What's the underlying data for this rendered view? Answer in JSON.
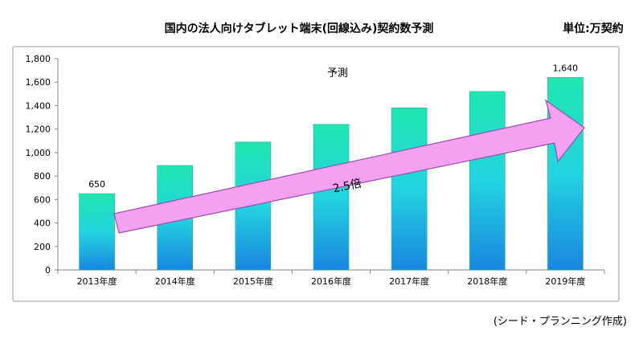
{
  "chart_data": {
    "type": "bar",
    "title": "国内の法人向けタブレット端末(回線込み)契約数予測",
    "unit_label": "単位:万契約",
    "categories": [
      "2013年度",
      "2014年度",
      "2015年度",
      "2016年度",
      "2017年度",
      "2018年度",
      "2019年度"
    ],
    "values": [
      650,
      890,
      1090,
      1240,
      1380,
      1520,
      1640
    ],
    "data_labels": {
      "0": "650",
      "6": "1,640"
    },
    "yticks": [
      0,
      200,
      400,
      600,
      800,
      1000,
      1200,
      1400,
      1600,
      1800
    ],
    "ytick_labels": [
      "0",
      "200",
      "400",
      "600",
      "800",
      "1,000",
      "1,200",
      "1,400",
      "1,600",
      "1,800"
    ],
    "ylim": [
      0,
      1800
    ],
    "xlabel": "",
    "ylabel": "",
    "grid": false,
    "annotations": {
      "forecast": "予測",
      "growth": "2.5倍"
    },
    "source": "(シード・プランニング作成)",
    "colors": {
      "bar_top": "#1de0b0",
      "bar_bottom": "#1a8fe0",
      "arrow_fill": "#f5a0f0",
      "arrow_stroke": "#9a4fb0"
    }
  }
}
